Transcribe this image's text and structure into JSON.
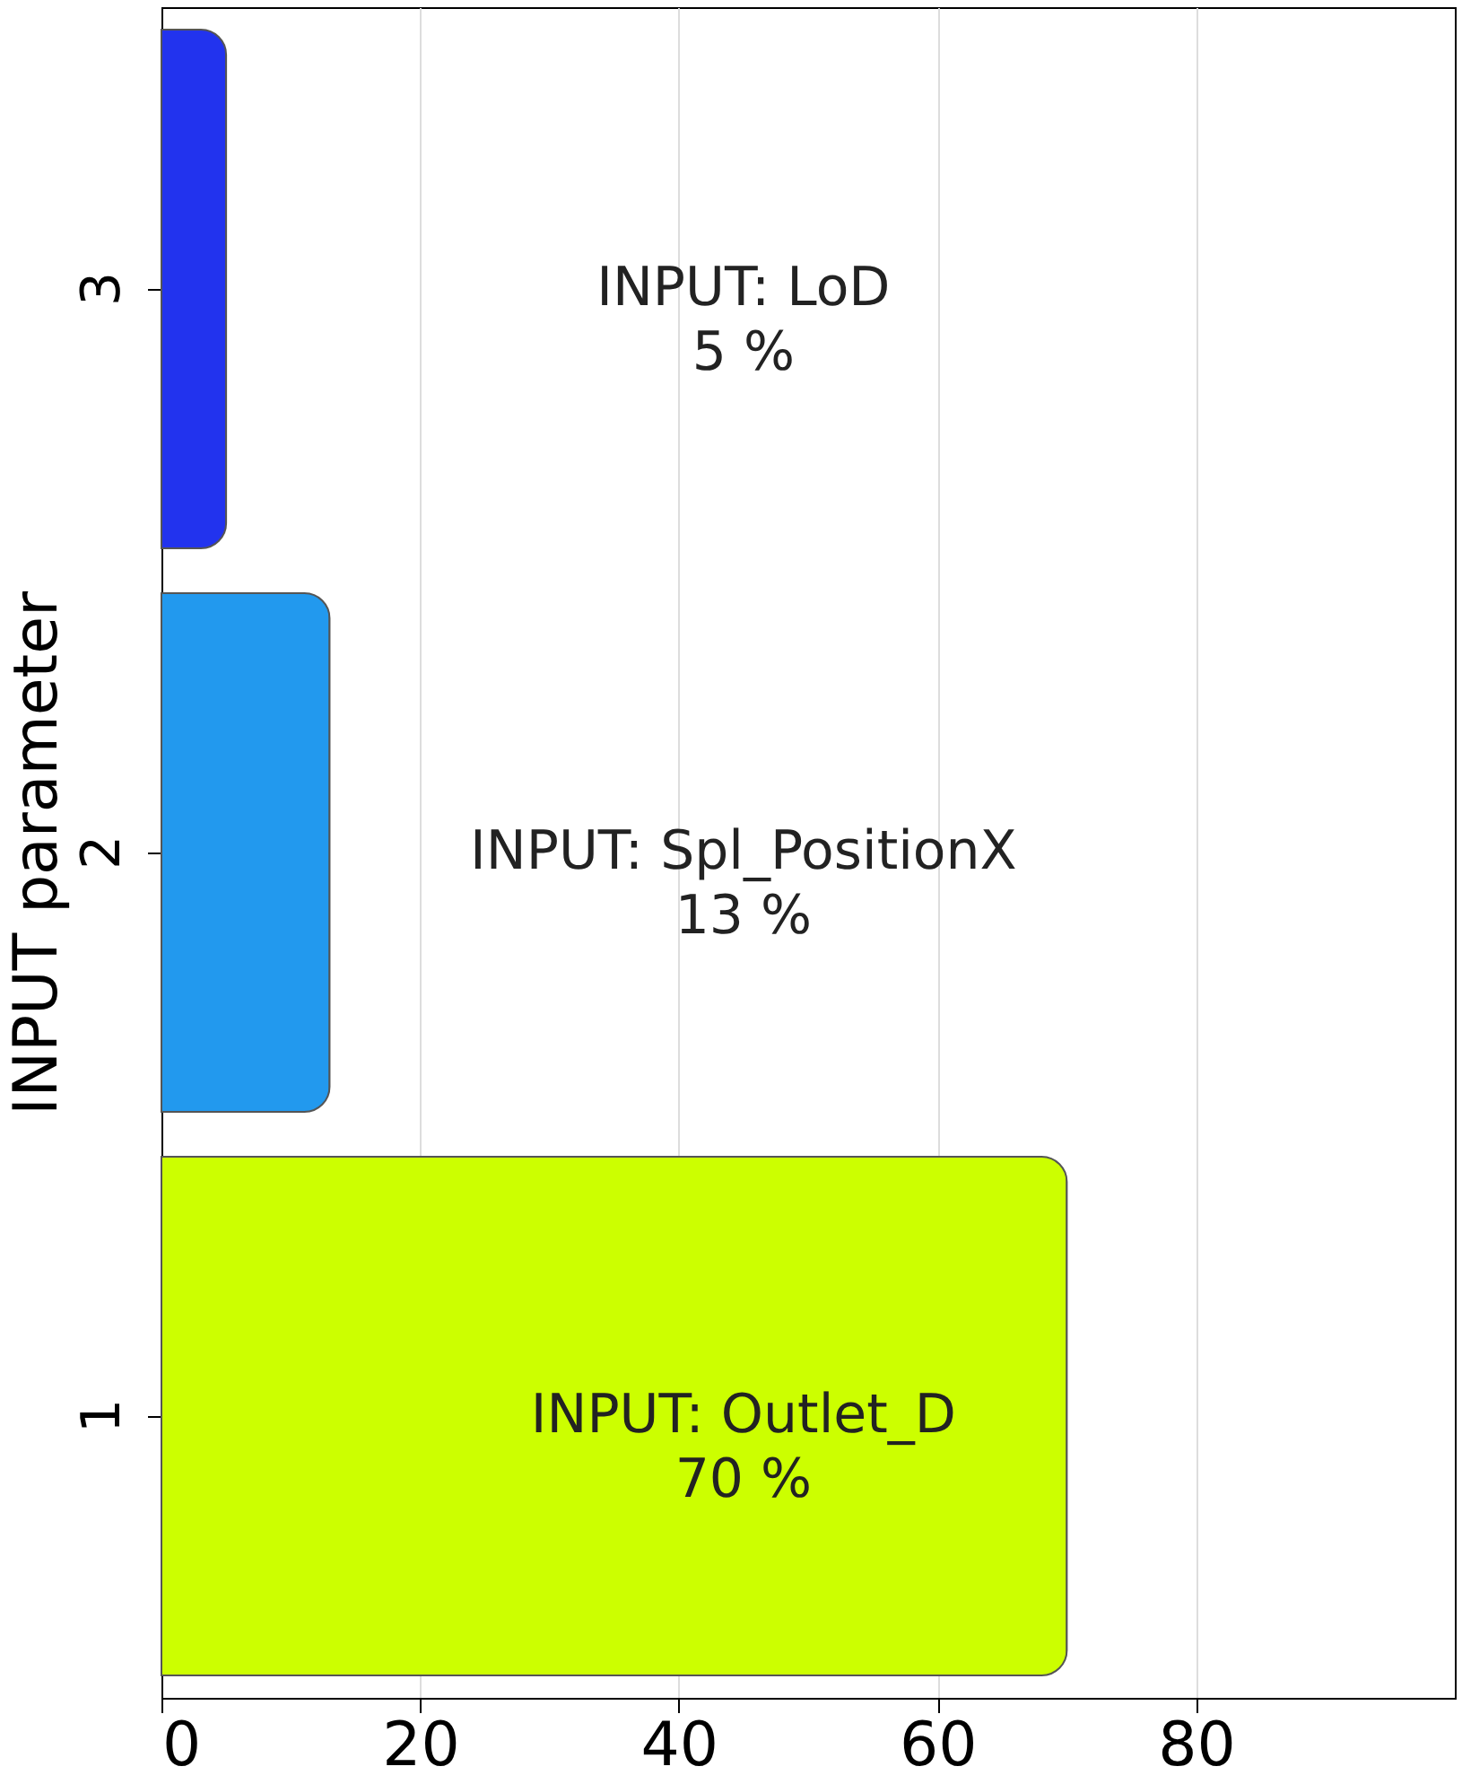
{
  "chart_data": {
    "type": "bar",
    "orientation": "horizontal",
    "ylabel": "INPUT parameter",
    "categories": [
      "3",
      "2",
      "1"
    ],
    "values": [
      5,
      13,
      70
    ],
    "colors": [
      "#2233ee",
      "#2299ee",
      "#ccff00"
    ],
    "xlim": [
      0,
      100
    ],
    "xticks": [
      0,
      20,
      40,
      60,
      80
    ],
    "grid": "x",
    "annotations": [
      "INPUT: LoD\n5 %",
      "INPUT: Spl_PositionX\n13 %",
      "INPUT: Outlet_D\n70 %"
    ]
  }
}
